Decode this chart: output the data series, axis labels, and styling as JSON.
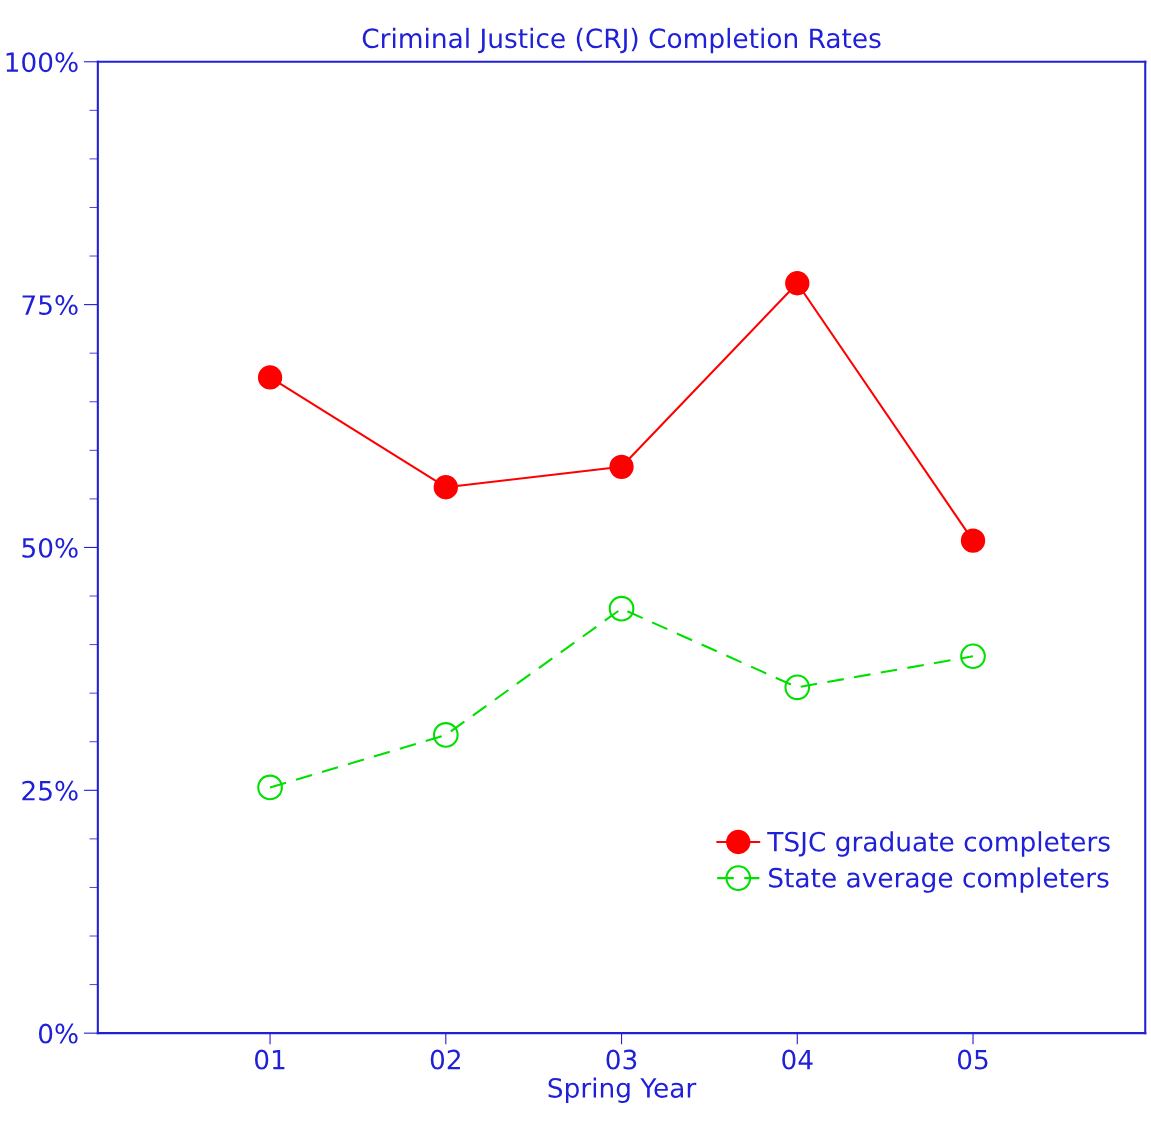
{
  "chart_data": {
    "type": "line",
    "title": "Criminal Justice (CRJ) Completion Rates",
    "xlabel": "Spring Year",
    "categories": [
      "01",
      "02",
      "03",
      "04",
      "05"
    ],
    "series": [
      {
        "name": "TSJC graduate completers",
        "color": "#ff0000",
        "values": [
          67.5,
          56.2,
          58.3,
          77.2,
          50.7
        ],
        "marker": "circle",
        "line_style": "solid"
      },
      {
        "name": "State average completers",
        "color": "#00e000",
        "values": [
          25.3,
          30.7,
          43.7,
          35.6,
          38.8
        ],
        "marker": "circle",
        "line_style": "dashed"
      }
    ],
    "ylim": [
      0,
      100
    ],
    "yticks": [
      {
        "value": 0,
        "label": "0%"
      },
      {
        "value": 25,
        "label": "25%"
      },
      {
        "value": 50,
        "label": "50%"
      },
      {
        "value": 75,
        "label": "75%"
      },
      {
        "value": 100,
        "label": "100%"
      }
    ],
    "grid": false,
    "legend": "bottom right"
  }
}
